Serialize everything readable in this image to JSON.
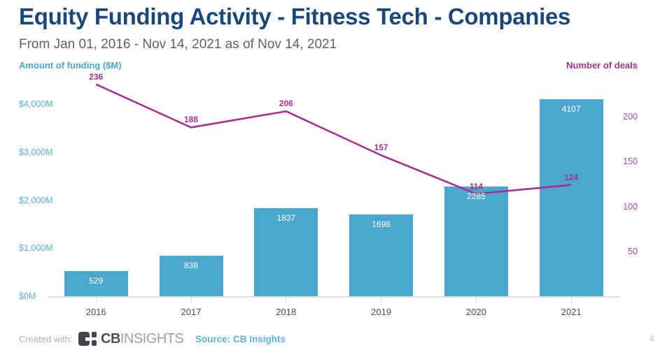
{
  "header": {
    "title": "Equity Funding Activity - Fitness Tech - Companies",
    "subtitle": "From Jan 01, 2016 - Nov 14, 2021 as of Nov 14, 2021"
  },
  "chart_data": {
    "type": "bar",
    "subtype": "bar-line-combo",
    "categories": [
      "2016",
      "2017",
      "2018",
      "2019",
      "2020",
      "2021"
    ],
    "series": [
      {
        "name": "Amount of funding ($M)",
        "type": "bar",
        "axis": "left",
        "color": "#4BA7CF",
        "values": [
          529,
          838,
          1837,
          1698,
          2285,
          4107
        ]
      },
      {
        "name": "Number of deals",
        "type": "line",
        "axis": "right",
        "color": "#A6308F",
        "values": [
          236,
          188,
          206,
          157,
          114,
          124
        ]
      }
    ],
    "left_axis": {
      "label": "Amount of funding ($M)",
      "tick_labels": [
        "$0M",
        "$1,000M",
        "$2,000M",
        "$3,000M",
        "$4,000M"
      ],
      "tick_values": [
        0,
        1000,
        2000,
        3000,
        4000
      ],
      "ylim": [
        0,
        4600
      ]
    },
    "right_axis": {
      "label": "Number of deals",
      "tick_labels": [
        "50",
        "100",
        "150",
        "200"
      ],
      "tick_values": [
        50,
        100,
        150,
        200
      ],
      "ylim": [
        0,
        250
      ]
    },
    "grid": false,
    "legend": "none",
    "data_labels": true
  },
  "footer": {
    "created_with": "Created with:",
    "logo_bold": "CB",
    "logo_light": "INSIGHTS",
    "source": "Source: CB Insights",
    "page_number": "4"
  }
}
